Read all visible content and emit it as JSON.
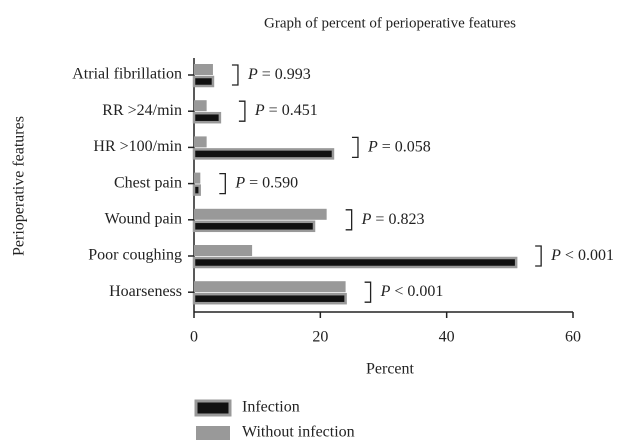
{
  "chart_data": {
    "type": "barh",
    "title": "Graph of percent of perioperative features",
    "xlabel": "Percent",
    "ylabel": "Perioperative features",
    "categories": [
      "Atrial fibrillation",
      "RR >24/min",
      "HR >100/min",
      "Chest pain",
      "Wound pain",
      "Poor coughing",
      "Hoarseness"
    ],
    "series": [
      {
        "name": "Infection",
        "color": "#111111",
        "values": [
          3.0,
          4.1,
          22.0,
          0.9,
          19.0,
          51.0,
          24.0
        ]
      },
      {
        "name": "Without infection",
        "color": "#999999",
        "values": [
          3.0,
          2.0,
          2.0,
          1.0,
          21.0,
          9.2,
          24.0
        ]
      }
    ],
    "annotations": [
      "P = 0.993",
      "P = 0.451",
      "P = 0.058",
      "P = 0.590",
      "P = 0.823",
      "P < 0.001",
      "P < 0.001"
    ],
    "xlim": [
      0,
      60
    ],
    "xticks": [
      0,
      20,
      40,
      60
    ],
    "legend": "bottom"
  }
}
